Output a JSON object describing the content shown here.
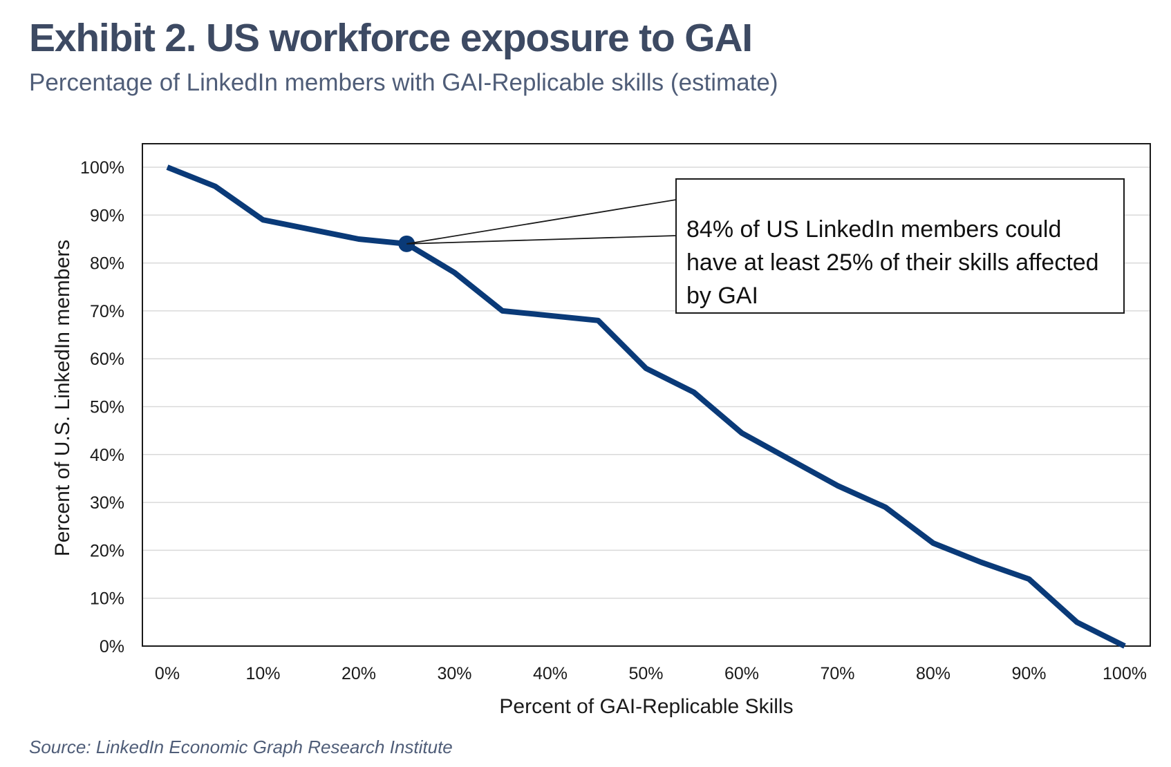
{
  "header": {
    "title": "Exhibit 2. US workforce exposure to GAI",
    "subtitle": "Percentage of LinkedIn members with GAI-Replicable skills (estimate)"
  },
  "footer": {
    "source": "Source: LinkedIn Economic Graph Research Institute"
  },
  "colors": {
    "series": "#0a3a78",
    "gridline": "#d9d9d9",
    "title": "#3d4a63"
  },
  "chart_data": {
    "type": "line",
    "title": "Exhibit 2. US workforce exposure to GAI",
    "subtitle": "Percentage of LinkedIn members with GAI-Replicable skills (estimate)",
    "xlabel": "Percent of GAI-Replicable Skills",
    "ylabel": "Percent of U.S. LinkedIn members",
    "xlim": [
      0,
      100
    ],
    "ylim": [
      0,
      100
    ],
    "x_ticks": [
      "0%",
      "10%",
      "20%",
      "30%",
      "40%",
      "50%",
      "60%",
      "70%",
      "80%",
      "90%",
      "100%"
    ],
    "y_ticks": [
      "0%",
      "10%",
      "20%",
      "30%",
      "40%",
      "50%",
      "60%",
      "70%",
      "80%",
      "90%",
      "100%"
    ],
    "grid": "horizontal",
    "legend": "none",
    "series": [
      {
        "x": [
          0,
          5,
          10,
          15,
          20,
          25,
          30,
          35,
          40,
          45,
          50,
          55,
          60,
          65,
          70,
          75,
          80,
          85,
          90,
          95,
          100
        ],
        "y": [
          100,
          96,
          89,
          87,
          85,
          84,
          78,
          70,
          69,
          68,
          58,
          53,
          44.5,
          39,
          33.5,
          29,
          21.5,
          17.5,
          14,
          5,
          0
        ]
      }
    ],
    "highlight": {
      "x": 25,
      "y": 84
    },
    "annotation": "84% of US LinkedIn members could have at least 25% of their skills affected by GAI"
  }
}
